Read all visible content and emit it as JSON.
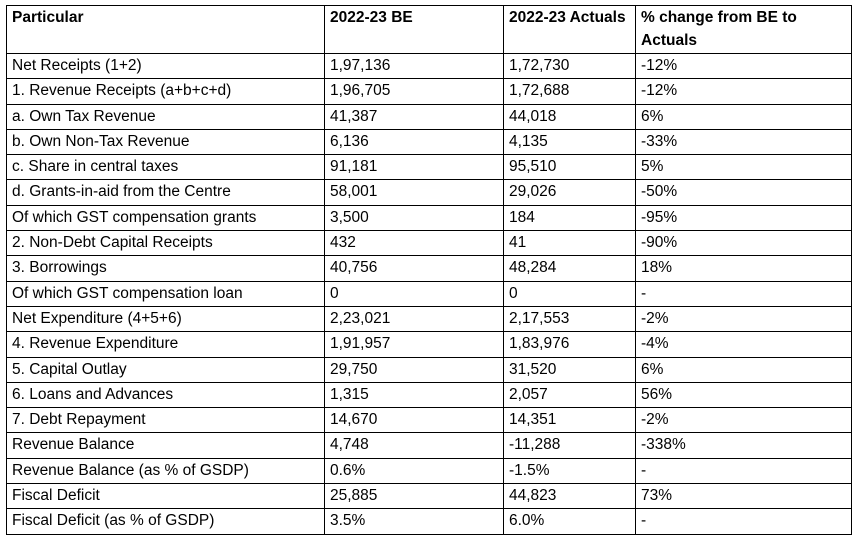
{
  "table": {
    "headers": [
      "Particular",
      "2022-23 BE",
      "2022-23 Actuals",
      "% change from BE to Actuals"
    ],
    "rows": [
      [
        "Net Receipts (1+2)",
        "1,97,136",
        "1,72,730",
        "-12%"
      ],
      [
        "1. Revenue Receipts (a+b+c+d)",
        "1,96,705",
        "1,72,688",
        "-12%"
      ],
      [
        "a. Own Tax Revenue",
        "41,387",
        "44,018",
        "6%"
      ],
      [
        "b. Own Non-Tax Revenue",
        "6,136",
        "4,135",
        "-33%"
      ],
      [
        "c. Share in central taxes",
        "91,181",
        "95,510",
        "5%"
      ],
      [
        "d. Grants-in-aid from the Centre",
        "58,001",
        "29,026",
        "-50%"
      ],
      [
        "Of which GST compensation grants",
        "3,500",
        "184",
        "-95%"
      ],
      [
        "2. Non-Debt Capital Receipts",
        "432",
        "41",
        "-90%"
      ],
      [
        "3. Borrowings",
        "40,756",
        "48,284",
        "18%"
      ],
      [
        "Of which GST compensation loan",
        "0",
        "0",
        "-"
      ],
      [
        "Net Expenditure (4+5+6)",
        "2,23,021",
        "2,17,553",
        "-2%"
      ],
      [
        "4. Revenue Expenditure",
        "1,91,957",
        "1,83,976",
        "-4%"
      ],
      [
        "5. Capital Outlay",
        "29,750",
        "31,520",
        "6%"
      ],
      [
        "6. Loans and Advances",
        "1,315",
        "2,057",
        "56%"
      ],
      [
        "7. Debt Repayment",
        "14,670",
        "14,351",
        "-2%"
      ],
      [
        "Revenue Balance",
        "4,748",
        "-11,288",
        "-338%"
      ],
      [
        "Revenue Balance (as % of GSDP)",
        "0.6%",
        "-1.5%",
        "-"
      ],
      [
        "Fiscal Deficit",
        "25,885",
        "44,823",
        "73%"
      ],
      [
        "Fiscal Deficit (as % of GSDP)",
        "3.5%",
        "6.0%",
        "-"
      ]
    ]
  }
}
